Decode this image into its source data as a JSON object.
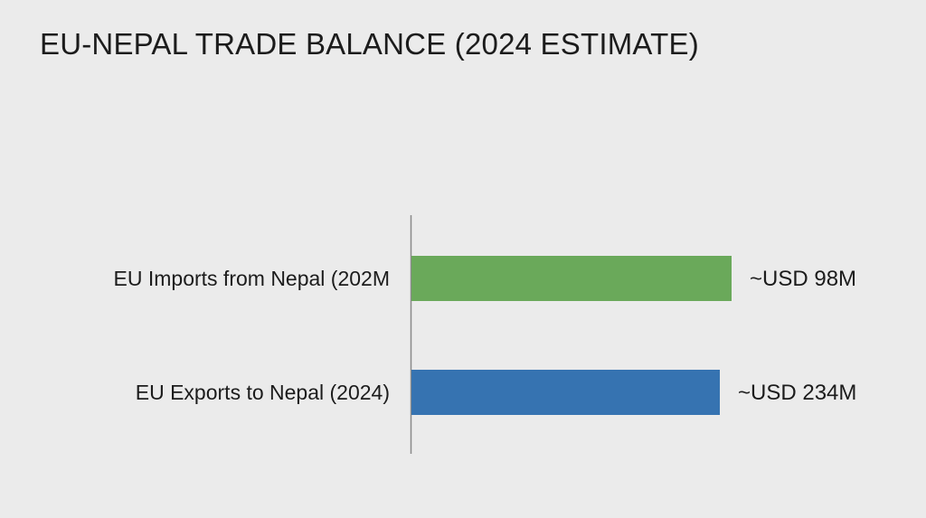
{
  "title": "EU-NEPAL TRADE BALANCE (2024 ESTIMATE)",
  "chart_data": {
    "type": "bar",
    "orientation": "horizontal",
    "title": "EU-NEPAL TRADE BALANCE (2024 ESTIMATE)",
    "categories": [
      "EU Imports from Nepal (202M",
      "EU Exports to Nepal (2024)"
    ],
    "values": [
      98,
      234
    ],
    "value_labels": [
      "~USD 98M",
      "~USD 234M"
    ],
    "colors": [
      "#6aa95a",
      "#3673b1"
    ],
    "grid": false,
    "legend": "none"
  }
}
